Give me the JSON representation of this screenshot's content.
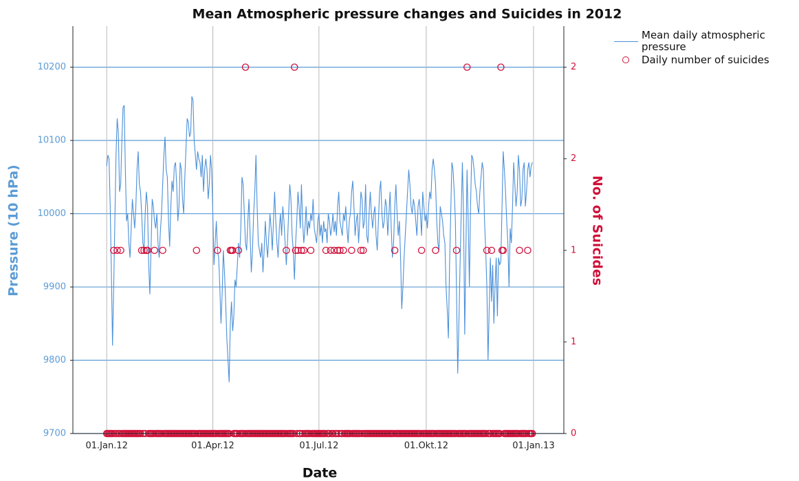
{
  "chart_data": {
    "type": "line-scatter-dual",
    "title": "Mean Atmospheric pressure changes and Suicides in 2012",
    "xlabel": "Date",
    "ylabel": "Pressure (10 hPa)",
    "y2label": "No. of Suicides",
    "xlim": [
      "2011-12-03",
      "2013-01-27"
    ],
    "xticks": [
      {
        "value": "2012-01-01",
        "label": "01.Jan.12"
      },
      {
        "value": "2012-04-01",
        "label": "01.Apr.12"
      },
      {
        "value": "2012-07-01",
        "label": "01.Jul.12"
      },
      {
        "value": "2012-10-01",
        "label": "01.Okt.12"
      },
      {
        "value": "2013-01-01",
        "label": "01.Jan.13"
      }
    ],
    "ylim": [
      9700,
      10256
    ],
    "yticks": [
      9700,
      9800,
      9900,
      10000,
      10100,
      10200
    ],
    "y2lim": [
      0,
      2.224
    ],
    "y2ticks": [
      0,
      {
        "value": 0.5,
        "label": "1"
      },
      1,
      {
        "value": 1.5,
        "label": "2"
      },
      2
    ],
    "grid": true,
    "x": [
      "2012-01-01",
      "2012-01-02",
      "2012-01-03",
      "2012-01-04",
      "2012-01-05",
      "2012-01-06",
      "2012-01-07",
      "2012-01-08",
      "2012-01-09",
      "2012-01-10",
      "2012-01-11",
      "2012-01-12",
      "2012-01-13",
      "2012-01-14",
      "2012-01-15",
      "2012-01-16",
      "2012-01-17",
      "2012-01-18",
      "2012-01-19",
      "2012-01-20",
      "2012-01-21",
      "2012-01-22",
      "2012-01-23",
      "2012-01-24",
      "2012-01-25",
      "2012-01-26",
      "2012-01-27",
      "2012-01-28",
      "2012-01-29",
      "2012-01-30",
      "2012-01-31",
      "2012-02-01",
      "2012-02-02",
      "2012-02-03",
      "2012-02-04",
      "2012-02-05",
      "2012-02-06",
      "2012-02-07",
      "2012-02-08",
      "2012-02-09",
      "2012-02-10",
      "2012-02-11",
      "2012-02-12",
      "2012-02-13",
      "2012-02-14",
      "2012-02-15",
      "2012-02-16",
      "2012-02-17",
      "2012-02-18",
      "2012-02-19",
      "2012-02-20",
      "2012-02-21",
      "2012-02-22",
      "2012-02-23",
      "2012-02-24",
      "2012-02-25",
      "2012-02-26",
      "2012-02-27",
      "2012-02-28",
      "2012-02-29",
      "2012-03-01",
      "2012-03-02",
      "2012-03-03",
      "2012-03-04",
      "2012-03-05",
      "2012-03-06",
      "2012-03-07",
      "2012-03-08",
      "2012-03-09",
      "2012-03-10",
      "2012-03-11",
      "2012-03-12",
      "2012-03-13",
      "2012-03-14",
      "2012-03-15",
      "2012-03-16",
      "2012-03-17",
      "2012-03-18",
      "2012-03-19",
      "2012-03-20",
      "2012-03-21",
      "2012-03-22",
      "2012-03-23",
      "2012-03-24",
      "2012-03-25",
      "2012-03-26",
      "2012-03-27",
      "2012-03-28",
      "2012-03-29",
      "2012-03-30",
      "2012-03-31",
      "2012-04-01",
      "2012-04-02",
      "2012-04-03",
      "2012-04-04",
      "2012-04-05",
      "2012-04-06",
      "2012-04-07",
      "2012-04-08",
      "2012-04-09",
      "2012-04-10",
      "2012-04-11",
      "2012-04-12",
      "2012-04-13",
      "2012-04-14",
      "2012-04-15",
      "2012-04-16",
      "2012-04-17",
      "2012-04-18",
      "2012-04-19",
      "2012-04-20",
      "2012-04-21",
      "2012-04-22",
      "2012-04-23",
      "2012-04-24",
      "2012-04-25",
      "2012-04-26",
      "2012-04-27",
      "2012-04-28",
      "2012-04-29",
      "2012-04-30",
      "2012-05-01",
      "2012-05-02",
      "2012-05-03",
      "2012-05-04",
      "2012-05-05",
      "2012-05-06",
      "2012-05-07",
      "2012-05-08",
      "2012-05-09",
      "2012-05-10",
      "2012-05-11",
      "2012-05-12",
      "2012-05-13",
      "2012-05-14",
      "2012-05-15",
      "2012-05-16",
      "2012-05-17",
      "2012-05-18",
      "2012-05-19",
      "2012-05-20",
      "2012-05-21",
      "2012-05-22",
      "2012-05-23",
      "2012-05-24",
      "2012-05-25",
      "2012-05-26",
      "2012-05-27",
      "2012-05-28",
      "2012-05-29",
      "2012-05-30",
      "2012-05-31",
      "2012-06-01",
      "2012-06-02",
      "2012-06-03",
      "2012-06-04",
      "2012-06-05",
      "2012-06-06",
      "2012-06-07",
      "2012-06-08",
      "2012-06-09",
      "2012-06-10",
      "2012-06-11",
      "2012-06-12",
      "2012-06-13",
      "2012-06-14",
      "2012-06-15",
      "2012-06-16",
      "2012-06-17",
      "2012-06-18",
      "2012-06-19",
      "2012-06-20",
      "2012-06-21",
      "2012-06-22",
      "2012-06-23",
      "2012-06-24",
      "2012-06-25",
      "2012-06-26",
      "2012-06-27",
      "2012-06-28",
      "2012-06-29",
      "2012-06-30",
      "2012-07-01",
      "2012-07-02",
      "2012-07-03",
      "2012-07-04",
      "2012-07-05",
      "2012-07-06",
      "2012-07-07",
      "2012-07-08",
      "2012-07-09",
      "2012-07-10",
      "2012-07-11",
      "2012-07-12",
      "2012-07-13",
      "2012-07-14",
      "2012-07-15",
      "2012-07-16",
      "2012-07-17",
      "2012-07-18",
      "2012-07-19",
      "2012-07-20",
      "2012-07-21",
      "2012-07-22",
      "2012-07-23",
      "2012-07-24",
      "2012-07-25",
      "2012-07-26",
      "2012-07-27",
      "2012-07-28",
      "2012-07-29",
      "2012-07-30",
      "2012-07-31",
      "2012-08-01",
      "2012-08-02",
      "2012-08-03",
      "2012-08-04",
      "2012-08-05",
      "2012-08-06",
      "2012-08-07",
      "2012-08-08",
      "2012-08-09",
      "2012-08-10",
      "2012-08-11",
      "2012-08-12",
      "2012-08-13",
      "2012-08-14",
      "2012-08-15",
      "2012-08-16",
      "2012-08-17",
      "2012-08-18",
      "2012-08-19",
      "2012-08-20",
      "2012-08-21",
      "2012-08-22",
      "2012-08-23",
      "2012-08-24",
      "2012-08-25",
      "2012-08-26",
      "2012-08-27",
      "2012-08-28",
      "2012-08-29",
      "2012-08-30",
      "2012-08-31",
      "2012-09-01",
      "2012-09-02",
      "2012-09-03",
      "2012-09-04",
      "2012-09-05",
      "2012-09-06",
      "2012-09-07",
      "2012-09-08",
      "2012-09-09",
      "2012-09-10",
      "2012-09-11",
      "2012-09-12",
      "2012-09-13",
      "2012-09-14",
      "2012-09-15",
      "2012-09-16",
      "2012-09-17",
      "2012-09-18",
      "2012-09-19",
      "2012-09-20",
      "2012-09-21",
      "2012-09-22",
      "2012-09-23",
      "2012-09-24",
      "2012-09-25",
      "2012-09-26",
      "2012-09-27",
      "2012-09-28",
      "2012-09-29",
      "2012-09-30",
      "2012-10-01",
      "2012-10-02",
      "2012-10-03",
      "2012-10-04",
      "2012-10-05",
      "2012-10-06",
      "2012-10-07",
      "2012-10-08",
      "2012-10-09",
      "2012-10-10",
      "2012-10-11",
      "2012-10-12",
      "2012-10-13",
      "2012-10-14",
      "2012-10-15",
      "2012-10-16",
      "2012-10-17",
      "2012-10-18",
      "2012-10-19",
      "2012-10-20",
      "2012-10-21",
      "2012-10-22",
      "2012-10-23",
      "2012-10-24",
      "2012-10-25",
      "2012-10-26",
      "2012-10-27",
      "2012-10-28",
      "2012-10-29",
      "2012-10-30",
      "2012-10-31",
      "2012-11-01",
      "2012-11-02",
      "2012-11-03",
      "2012-11-04",
      "2012-11-05",
      "2012-11-06",
      "2012-11-07",
      "2012-11-08",
      "2012-11-09",
      "2012-11-10",
      "2012-11-11",
      "2012-11-12",
      "2012-11-13",
      "2012-11-14",
      "2012-11-15",
      "2012-11-16",
      "2012-11-17",
      "2012-11-18",
      "2012-11-19",
      "2012-11-20",
      "2012-11-21",
      "2012-11-22",
      "2012-11-23",
      "2012-11-24",
      "2012-11-25",
      "2012-11-26",
      "2012-11-27",
      "2012-11-28",
      "2012-11-29",
      "2012-11-30",
      "2012-12-01",
      "2012-12-02",
      "2012-12-03",
      "2012-12-04",
      "2012-12-05",
      "2012-12-06",
      "2012-12-07",
      "2012-12-08",
      "2012-12-09",
      "2012-12-10",
      "2012-12-11",
      "2012-12-12",
      "2012-12-13",
      "2012-12-14",
      "2012-12-15",
      "2012-12-16",
      "2012-12-17",
      "2012-12-18",
      "2012-12-19",
      "2012-12-20",
      "2012-12-21",
      "2012-12-22",
      "2012-12-23",
      "2012-12-24",
      "2012-12-25",
      "2012-12-26",
      "2012-12-27",
      "2012-12-28",
      "2012-12-29",
      "2012-12-30",
      "2012-12-31"
    ],
    "series": [
      {
        "name": "Mean daily atmospheric pressure",
        "kind": "line",
        "color": "#4a8fd8",
        "values": [
          10065,
          10080,
          10075,
          10010,
          9920,
          9820,
          9900,
          9990,
          10080,
          10130,
          10110,
          10030,
          10040,
          10100,
          10145,
          10148,
          10060,
          9990,
          10000,
          9960,
          9940,
          9980,
          10020,
          10000,
          9980,
          10010,
          10060,
          10085,
          10040,
          10030,
          10000,
          9960,
          9950,
          10000,
          10030,
          10010,
          9930,
          9890,
          9950,
          10020,
          10010,
          9990,
          9980,
          10000,
          9960,
          9940,
          9975,
          10000,
          10040,
          10080,
          10105,
          10060,
          10050,
          9990,
          9955,
          10010,
          10045,
          10030,
          10065,
          10070,
          10040,
          9990,
          10010,
          10070,
          10060,
          10020,
          10000,
          10050,
          10090,
          10130,
          10125,
          10105,
          10110,
          10160,
          10155,
          10100,
          10080,
          10060,
          10085,
          10075,
          10070,
          10050,
          10080,
          10030,
          10060,
          10075,
          10060,
          10020,
          10040,
          10080,
          10060,
          10000,
          9930,
          9960,
          9990,
          9950,
          9940,
          9900,
          9850,
          9890,
          9950,
          9920,
          9880,
          9830,
          9800,
          9770,
          9850,
          9880,
          9840,
          9860,
          9910,
          9900,
          9930,
          9960,
          9940,
          9980,
          10050,
          10040,
          10000,
          9960,
          9950,
          9990,
          10020,
          9970,
          9920,
          9950,
          10000,
          10030,
          10080,
          10010,
          9960,
          9950,
          9940,
          9960,
          9920,
          9950,
          9990,
          9960,
          9940,
          9970,
          10000,
          9980,
          9950,
          9990,
          10030,
          9990,
          9960,
          9940,
          9980,
          10000,
          9970,
          10010,
          9990,
          9960,
          9930,
          9960,
          10000,
          10040,
          10020,
          9970,
          9950,
          9910,
          9960,
          9990,
          10030,
          10010,
          9980,
          10040,
          9990,
          9960,
          9980,
          10010,
          9970,
          9990,
          9980,
          10000,
          9990,
          10020,
          9980,
          9970,
          9960,
          9990,
          10000,
          9970,
          9985,
          9960,
          9990,
          9975,
          9980,
          9960,
          10000,
          9990,
          9970,
          9980,
          10000,
          9975,
          9990,
          9970,
          10010,
          10030,
          9990,
          9980,
          9970,
          10000,
          9990,
          10010,
          9980,
          9960,
          9990,
          10000,
          10030,
          10045,
          10010,
          9970,
          9990,
          10000,
          9960,
          9990,
          10030,
          10020,
          9980,
          9990,
          10040,
          9970,
          9960,
          10000,
          10030,
          10000,
          9980,
          10000,
          10010,
          9970,
          9950,
          9990,
          10030,
          10045,
          10000,
          9980,
          9990,
          10020,
          10010,
          9970,
          10000,
          10030,
          9980,
          9940,
          9960,
          10010,
          10040,
          10000,
          9970,
          9990,
          9940,
          9870,
          9900,
          9940,
          9970,
          10000,
          10030,
          10060,
          10040,
          10010,
          10000,
          10020,
          10010,
          9990,
          9970,
          10010,
          10020,
          10000,
          9970,
          10030,
          10010,
          9990,
          10000,
          9980,
          10010,
          10030,
          10020,
          10060,
          10075,
          10060,
          10040,
          9990,
          9960,
          9950,
          10010,
          10000,
          9990,
          9970,
          9960,
          9900,
          9870,
          9830,
          9930,
          10000,
          10070,
          10060,
          10030,
          9990,
          9890,
          9782,
          9850,
          9930,
          10000,
          10070,
          10000,
          9835,
          9950,
          10060,
          9990,
          9900,
          10010,
          10080,
          10075,
          10060,
          10040,
          10030,
          10010,
          10000,
          10030,
          10050,
          10070,
          10060,
          9990,
          9950,
          9900,
          9800,
          9870,
          9940,
          9880,
          9930,
          9850,
          9900,
          9940,
          9860,
          9940,
          9930,
          9935,
          10010,
          10085,
          10060,
          10030,
          9990,
          9960,
          9900,
          9980,
          9960,
          10010,
          10070,
          10040,
          10010,
          10030,
          10080,
          10060,
          10010,
          10020,
          10060,
          10070,
          10010,
          10030,
          10060,
          10070,
          10050,
          10065,
          10070
        ]
      },
      {
        "name": "Daily number of suicides",
        "kind": "scatter",
        "axis": "y2",
        "color": "#d0103a",
        "values": [
          0,
          0,
          0,
          0,
          0,
          0,
          1,
          0,
          0,
          1,
          0,
          0,
          1,
          0,
          0,
          0,
          0,
          0,
          0,
          0,
          0,
          0,
          0,
          0,
          0,
          0,
          0,
          0,
          0,
          0,
          1,
          0,
          1,
          0,
          1,
          1,
          0,
          0,
          0,
          0,
          0,
          1,
          0,
          0,
          0,
          0,
          0,
          0,
          1,
          0,
          0,
          0,
          0,
          0,
          0,
          0,
          0,
          0,
          0,
          0,
          0,
          0,
          0,
          0,
          0,
          0,
          0,
          0,
          0,
          0,
          0,
          0,
          0,
          0,
          0,
          0,
          0,
          1,
          0,
          0,
          0,
          0,
          0,
          0,
          0,
          0,
          0,
          0,
          0,
          0,
          0,
          0,
          0,
          0,
          0,
          1,
          0,
          0,
          0,
          0,
          0,
          0,
          0,
          0,
          0,
          0,
          1,
          1,
          1,
          0,
          0,
          0,
          0,
          1,
          0,
          0,
          0,
          0,
          0,
          2,
          0,
          0,
          0,
          0,
          0,
          0,
          0,
          0,
          0,
          0,
          0,
          0,
          0,
          0,
          0,
          0,
          0,
          0,
          0,
          0,
          0,
          0,
          0,
          0,
          0,
          0,
          0,
          0,
          0,
          0,
          0,
          0,
          0,
          0,
          1,
          0,
          0,
          0,
          0,
          0,
          0,
          2,
          1,
          0,
          1,
          0,
          0,
          1,
          0,
          1,
          0,
          0,
          0,
          0,
          0,
          1,
          0,
          0,
          0,
          0,
          0,
          0,
          0,
          0,
          0,
          0,
          0,
          0,
          1,
          0,
          0,
          0,
          1,
          0,
          0,
          1,
          0,
          0,
          1,
          0,
          1,
          0,
          0,
          1,
          0,
          0,
          0,
          0,
          0,
          0,
          1,
          0,
          0,
          0,
          0,
          0,
          0,
          0,
          1,
          0,
          1,
          0,
          0,
          0,
          0,
          0,
          0,
          0,
          0,
          0,
          0,
          0,
          0,
          0,
          0,
          0,
          0,
          0,
          0,
          0,
          0,
          0,
          0,
          0,
          0,
          0,
          0,
          1,
          0,
          0,
          0,
          0,
          0,
          0,
          0,
          0,
          0,
          0,
          0,
          0,
          0,
          0,
          0,
          0,
          0,
          0,
          0,
          0,
          0,
          0,
          1,
          0,
          0,
          0,
          0,
          0,
          0,
          0,
          0,
          0,
          0,
          0,
          1,
          0,
          0,
          0,
          0,
          0,
          0,
          0,
          0,
          0,
          0,
          0,
          0,
          0,
          0,
          0,
          0,
          0,
          1,
          0,
          0,
          0,
          0,
          0,
          0,
          0,
          0,
          2,
          0,
          0,
          0,
          0,
          0,
          0,
          0,
          0,
          0,
          0,
          0,
          0,
          0,
          0,
          0,
          0,
          1,
          0,
          0,
          0,
          1,
          0,
          0,
          0,
          0,
          0,
          0,
          0,
          2,
          1,
          1,
          0,
          0,
          0,
          0,
          0,
          0,
          0,
          0,
          0,
          0,
          0,
          0,
          0,
          1,
          0,
          0,
          0,
          0,
          0,
          0,
          1,
          0,
          0,
          0,
          0
        ]
      }
    ]
  }
}
